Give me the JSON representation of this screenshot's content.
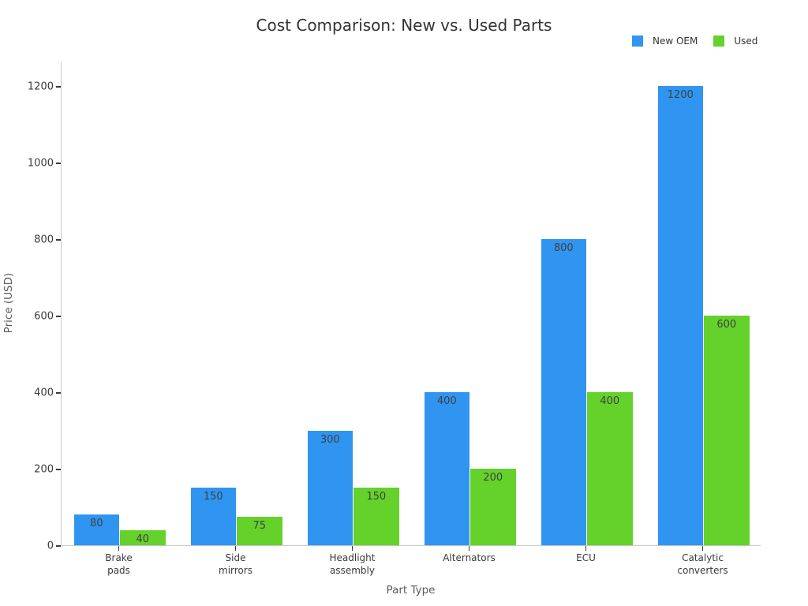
{
  "title": "Cost Comparison: New vs. Used Parts",
  "legend": [
    {
      "label": "New OEM",
      "color": "#3095f0"
    },
    {
      "label": "Used",
      "color": "#64d22b"
    }
  ],
  "xaxis_title": "Part Type",
  "yaxis_title": "Price (USD)",
  "chart_data": {
    "type": "bar",
    "title": "Cost Comparison: New vs. Used Parts",
    "xlabel": "Part Type",
    "ylabel": "Price (USD)",
    "categories": [
      "Brake\npads",
      "Side\nmirrors",
      "Headlight\nassembly",
      "Alternators",
      "ECU",
      "Catalytic\nconverters"
    ],
    "series": [
      {
        "name": "New OEM",
        "color": "#3095f0",
        "values": [
          80,
          150,
          300,
          400,
          800,
          1200
        ]
      },
      {
        "name": "Used",
        "color": "#64d22b",
        "values": [
          40,
          75,
          150,
          200,
          400,
          600
        ]
      }
    ],
    "yticks": [
      0,
      200,
      400,
      600,
      800,
      1000,
      1200
    ],
    "ylim": [
      0,
      1266
    ],
    "grid": false,
    "legend_position": "top-right",
    "bar_labels": true
  }
}
